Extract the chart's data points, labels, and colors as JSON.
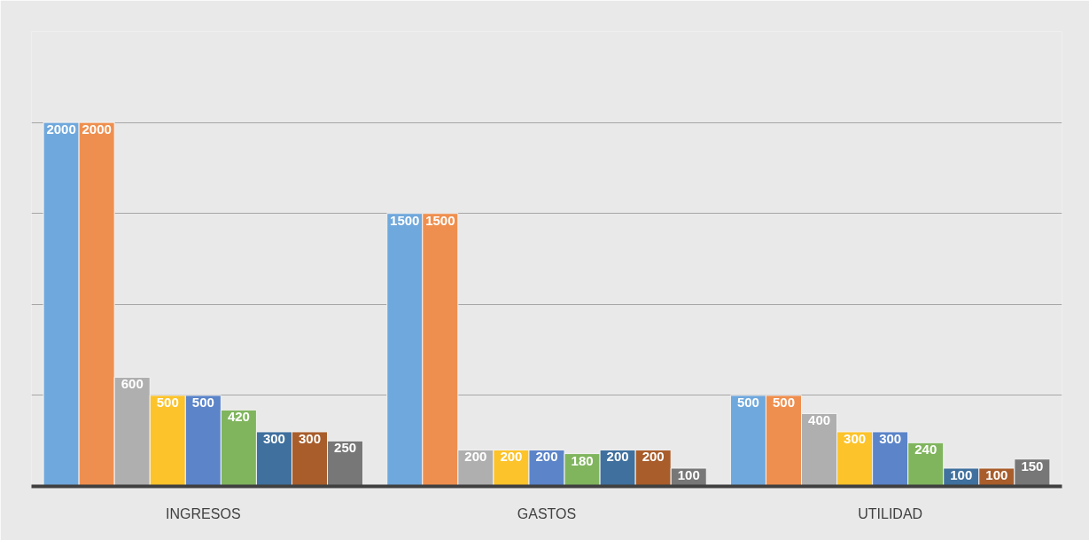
{
  "chart_data": {
    "type": "bar",
    "categories": [
      "INGRESOS",
      "GASTOS",
      "UTILIDAD"
    ],
    "series": [
      {
        "color": "#6fa8dc",
        "values": [
          2000,
          1500,
          500
        ]
      },
      {
        "color": "#ef8f4f",
        "values": [
          2000,
          1500,
          500
        ]
      },
      {
        "color": "#afafaf",
        "values": [
          600,
          200,
          400
        ]
      },
      {
        "color": "#fcc32a",
        "values": [
          500,
          200,
          300
        ]
      },
      {
        "color": "#5b84c9",
        "values": [
          500,
          200,
          300
        ]
      },
      {
        "color": "#80b55e",
        "values": [
          420,
          180,
          240
        ]
      },
      {
        "color": "#3f709e",
        "values": [
          300,
          200,
          100
        ]
      },
      {
        "color": "#a85d2b",
        "values": [
          300,
          200,
          100
        ]
      },
      {
        "color": "#777777",
        "values": [
          250,
          100,
          150
        ]
      }
    ],
    "ylim": [
      0,
      2500
    ],
    "yticks": [
      0,
      500,
      1000,
      1500,
      2000,
      2500
    ],
    "grid": "y",
    "tick_labels": "x",
    "data_labels": true
  }
}
